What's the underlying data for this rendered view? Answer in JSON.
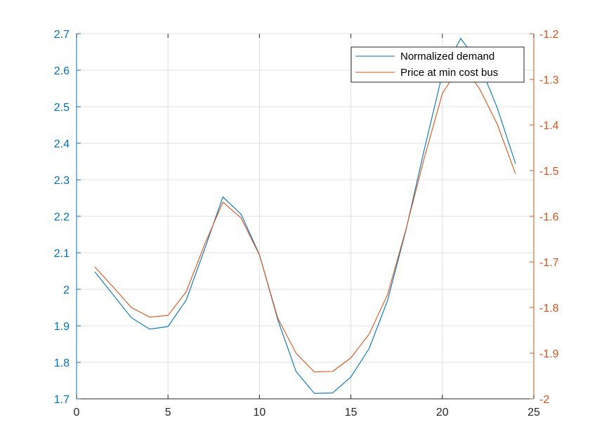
{
  "chart_data": {
    "type": "line",
    "title": "",
    "xlabel": "",
    "ylabel_left": "",
    "ylabel_right": "",
    "xlim": [
      0,
      25
    ],
    "ylim_left": [
      1.7,
      2.7
    ],
    "ylim_right": [
      -2,
      -1.2
    ],
    "x_ticks": [
      0,
      5,
      10,
      15,
      20,
      25
    ],
    "x_tick_labels": [
      "0",
      "5",
      "10",
      "15",
      "20",
      "25"
    ],
    "y_left_ticks": [
      1.7,
      1.8,
      1.9,
      2.0,
      2.1,
      2.2,
      2.3,
      2.4,
      2.5,
      2.6,
      2.7
    ],
    "y_left_tick_labels": [
      "1.7",
      "1.8",
      "1.9",
      "2",
      "2.1",
      "2.2",
      "2.3",
      "2.4",
      "2.5",
      "2.6",
      "2.7"
    ],
    "y_right_ticks": [
      -2,
      -1.9,
      -1.8,
      -1.7,
      -1.6,
      -1.5,
      -1.4,
      -1.3,
      -1.2
    ],
    "y_right_tick_labels": [
      "-2",
      "-1.9",
      "-1.8",
      "-1.7",
      "-1.6",
      "-1.5",
      "-1.4",
      "-1.3",
      "-1.2"
    ],
    "grid": true,
    "legend_position": "top-right",
    "x": [
      1,
      2,
      3,
      4,
      5,
      6,
      7,
      8,
      9,
      10,
      11,
      12,
      13,
      14,
      15,
      16,
      17,
      18,
      19,
      20,
      21,
      22,
      23,
      24
    ],
    "series": [
      {
        "name": "Normalized demand",
        "axis": "left",
        "color": "#0072BD",
        "values": [
          2.048,
          1.985,
          1.922,
          1.891,
          1.898,
          1.971,
          2.11,
          2.253,
          2.205,
          2.095,
          1.917,
          1.775,
          1.715,
          1.716,
          1.76,
          1.838,
          1.969,
          2.16,
          2.38,
          2.59,
          2.687,
          2.62,
          2.497,
          2.344
        ]
      },
      {
        "name": "Price at min cost bus",
        "axis": "right",
        "color": "#D95319",
        "values": [
          -1.711,
          -1.755,
          -1.8,
          -1.821,
          -1.817,
          -1.765,
          -1.662,
          -1.569,
          -1.604,
          -1.685,
          -1.823,
          -1.9,
          -1.941,
          -1.94,
          -1.91,
          -1.858,
          -1.772,
          -1.63,
          -1.474,
          -1.331,
          -1.268,
          -1.318,
          -1.398,
          -1.507
        ]
      }
    ]
  }
}
